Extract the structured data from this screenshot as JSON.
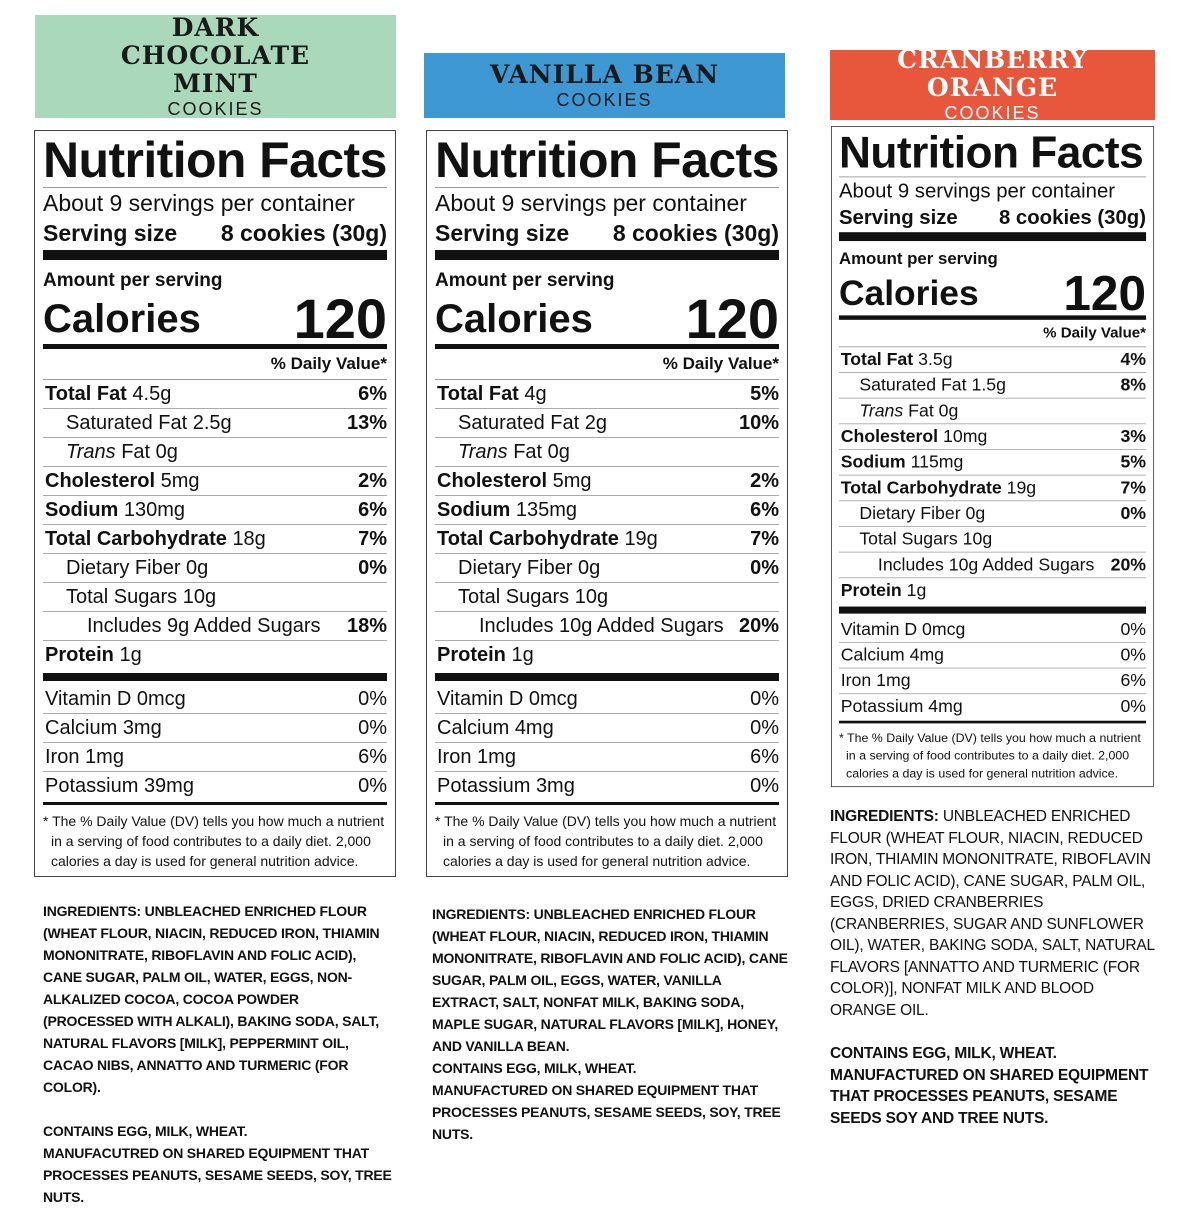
{
  "products": [
    {
      "header": {
        "name": "DARK CHOCOLATE MINT",
        "subtitle": "COOKIES"
      },
      "label": {
        "title": "Nutrition Facts",
        "servings": "About 9 servings per container",
        "serving_size_label": "Serving size",
        "serving_size": "8 cookies (30g)",
        "amount_per_serving": "Amount per serving",
        "calories_label": "Calories",
        "calories": "120",
        "dv_header": "% Daily Value*",
        "nutrients": [
          {
            "name": "Total Fat",
            "amount": "4.5g",
            "dv": "6%"
          },
          {
            "name": "Saturated Fat",
            "amount": "2.5g",
            "dv": "13%"
          },
          {
            "name_italic": "Trans",
            "name": "Fat",
            "amount": "0g"
          },
          {
            "name": "Cholesterol",
            "amount": "5mg",
            "dv": "2%"
          },
          {
            "name": "Sodium",
            "amount": "130mg",
            "dv": "6%"
          },
          {
            "name": "Total Carbohydrate",
            "amount": "18g",
            "dv": "7%"
          },
          {
            "name": "Dietary Fiber",
            "amount": "0g",
            "dv": "0%"
          },
          {
            "name": "Total Sugars",
            "amount": "10g"
          },
          {
            "name": "Includes 9g Added Sugars",
            "dv": "18%"
          },
          {
            "name": "Protein",
            "amount": "1g"
          }
        ],
        "vitamins": [
          {
            "name": "Vitamin D",
            "amount": "0mcg",
            "dv": "0%"
          },
          {
            "name": "Calcium",
            "amount": "3mg",
            "dv": "0%"
          },
          {
            "name": "Iron",
            "amount": "1mg",
            "dv": "6%"
          },
          {
            "name": "Potassium",
            "amount": "39mg",
            "dv": "0%"
          }
        ],
        "footnote": "* The % Daily Value (DV) tells you how much a nutrient in a serving of food contributes to a daily diet. 2,000 calories a day is used for general nutrition advice."
      },
      "ingredients": {
        "label": "INGREDIENTS:",
        "text": "UNBLEACHED ENRICHED FLOUR (WHEAT FLOUR, NIACIN, REDUCED IRON, THIAMIN MONONITRATE, RIBOFLAVIN AND FOLIC ACID), CANE SUGAR, PALM OIL, WATER, EGGS, NON-ALKALIZED COCOA, COCOA POWDER (PROCESSED WITH ALKALI), BAKING SODA, SALT, NATURAL FLAVORS [MILK], PEPPERMINT OIL, CACAO NIBS, ANNATTO AND TURMERIC (FOR COLOR).",
        "contains": "CONTAINS EGG, MILK, WHEAT.",
        "facility": "MANUFACUTRED ON SHARED EQUIPMENT THAT PROCESSES PEANUTS, SESAME SEEDS, SOY, TREE NUTS."
      }
    },
    {
      "header": {
        "name": "VANILLA BEAN",
        "subtitle": "COOKIES"
      },
      "label": {
        "title": "Nutrition Facts",
        "servings": "About 9 servings per container",
        "serving_size_label": "Serving size",
        "serving_size": "8 cookies (30g)",
        "amount_per_serving": "Amount per serving",
        "calories_label": "Calories",
        "calories": "120",
        "dv_header": "% Daily Value*",
        "nutrients": [
          {
            "name": "Total Fat",
            "amount": "4g",
            "dv": "5%"
          },
          {
            "name": "Saturated Fat",
            "amount": "2g",
            "dv": "10%"
          },
          {
            "name_italic": "Trans",
            "name": "Fat",
            "amount": "0g"
          },
          {
            "name": "Cholesterol",
            "amount": "5mg",
            "dv": "2%"
          },
          {
            "name": "Sodium",
            "amount": "135mg",
            "dv": "6%"
          },
          {
            "name": "Total Carbohydrate",
            "amount": "19g",
            "dv": "7%"
          },
          {
            "name": "Dietary Fiber",
            "amount": "0g",
            "dv": "0%"
          },
          {
            "name": "Total Sugars",
            "amount": "10g"
          },
          {
            "name": "Includes 10g Added Sugars",
            "dv": "20%"
          },
          {
            "name": "Protein",
            "amount": "1g"
          }
        ],
        "vitamins": [
          {
            "name": "Vitamin D",
            "amount": "0mcg",
            "dv": "0%"
          },
          {
            "name": "Calcium",
            "amount": "4mg",
            "dv": "0%"
          },
          {
            "name": "Iron",
            "amount": "1mg",
            "dv": "6%"
          },
          {
            "name": "Potassium",
            "amount": "3mg",
            "dv": "0%"
          }
        ],
        "footnote": "* The % Daily Value (DV) tells you how much a nutrient in a serving of food contributes to a daily diet. 2,000 calories a day is used for general nutrition advice."
      },
      "ingredients": {
        "label": "INGREDIENTS:",
        "text": "UNBLEACHED ENRICHED FLOUR (WHEAT FLOUR, NIACIN, REDUCED IRON, THIAMIN MONONITRATE, RIBOFLAVIN AND FOLIC ACID), CANE SUGAR, PALM OIL, EGGS, WATER, VANILLA EXTRACT, SALT, NONFAT MILK, BAKING SODA, MAPLE SUGAR, NATURAL FLAVORS [MILK], HONEY, AND VANILLA BEAN.",
        "contains": "CONTAINS EGG, MILK, WHEAT.",
        "facility": "MANUFACTURED ON SHARED EQUIPMENT THAT PROCESSES PEANUTS, SESAME SEEDS, SOY, TREE NUTS."
      }
    },
    {
      "header": {
        "name": "CRANBERRY ORANGE",
        "subtitle": "COOKIES"
      },
      "label": {
        "title": "Nutrition Facts",
        "servings": "About 9 servings per container",
        "serving_size_label": "Serving size",
        "serving_size": "8 cookies (30g)",
        "amount_per_serving": "Amount per serving",
        "calories_label": "Calories",
        "calories": "120",
        "dv_header": "% Daily Value*",
        "nutrients": [
          {
            "name": "Total Fat",
            "amount": "3.5g",
            "dv": "4%"
          },
          {
            "name": "Saturated Fat",
            "amount": "1.5g",
            "dv": "8%"
          },
          {
            "name_italic": "Trans",
            "name": "Fat",
            "amount": "0g"
          },
          {
            "name": "Cholesterol",
            "amount": "10mg",
            "dv": "3%"
          },
          {
            "name": "Sodium",
            "amount": "115mg",
            "dv": "5%"
          },
          {
            "name": "Total Carbohydrate",
            "amount": "19g",
            "dv": "7%"
          },
          {
            "name": "Dietary Fiber",
            "amount": "0g",
            "dv": "0%"
          },
          {
            "name": "Total Sugars",
            "amount": "10g"
          },
          {
            "name": "Includes 10g Added Sugars",
            "dv": "20%"
          },
          {
            "name": "Protein",
            "amount": "1g"
          }
        ],
        "vitamins": [
          {
            "name": "Vitamin D",
            "amount": "0mcg",
            "dv": "0%"
          },
          {
            "name": "Calcium",
            "amount": "4mg",
            "dv": "0%"
          },
          {
            "name": "Iron",
            "amount": "1mg",
            "dv": "6%"
          },
          {
            "name": "Potassium",
            "amount": "4mg",
            "dv": "0%"
          }
        ],
        "footnote": "* The % Daily Value (DV) tells you how much a nutrient in a serving of food contributes to a daily diet. 2,000 calories a day is used for general nutrition advice."
      },
      "ingredients": {
        "label": "INGREDIENTS:",
        "text": "UNBLEACHED ENRICHED FLOUR (WHEAT FLOUR, NIACIN, REDUCED IRON, THIAMIN MONONITRATE, RIBOFLAVIN AND FOLIC ACID), CANE SUGAR, PALM OIL, EGGS, DRIED CRANBERRIES (CRANBERRIES, SUGAR AND SUNFLOWER OIL), WATER, BAKING SODA, SALT, NATURAL FLAVORS [ANNATTO AND TURMERIC (FOR COLOR)], NONFAT MILK AND BLOOD ORANGE OIL.",
        "contains": "CONTAINS EGG, MILK, WHEAT.",
        "facility": "MANUFACTURED ON SHARED EQUIPMENT THAT PROCESSES PEANUTS, SESAME SEEDS SOY AND TREE NUTS."
      }
    }
  ]
}
